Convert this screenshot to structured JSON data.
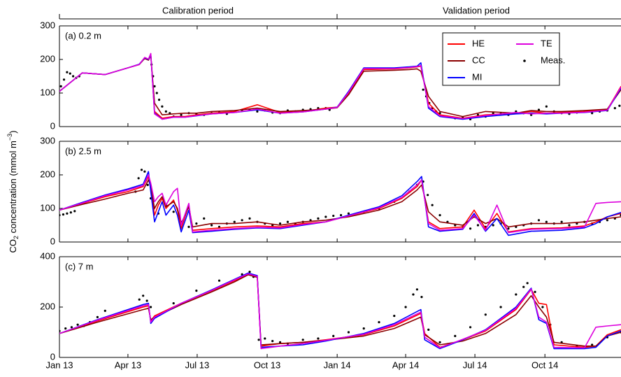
{
  "annotations": [
    "Calibration period",
    "Validation period"
  ],
  "ylabel": {
    "text": "CO",
    "sub": "2",
    "unit": " concentration (mmol m",
    "sup": "−3",
    "end": ")"
  },
  "chart_data": [
    {
      "type": "line",
      "title": "(a) 0.2 m",
      "legend": "upper right",
      "xlim": [
        0,
        738
      ],
      "ylim": [
        0,
        300
      ],
      "yticks": [
        0,
        100,
        200,
        300
      ],
      "x": [
        0,
        30,
        60,
        90,
        105,
        112,
        117,
        120,
        125,
        135,
        150,
        165,
        180,
        200,
        230,
        260,
        290,
        320,
        350,
        365,
        380,
        400,
        440,
        460,
        470,
        475,
        485,
        500,
        530,
        560,
        600,
        620,
        640,
        660,
        690,
        720,
        738
      ],
      "series": [
        {
          "name": "HE",
          "color": "#ff0000",
          "values": [
            105,
            160,
            155,
            175,
            185,
            205,
            200,
            215,
            45,
            25,
            30,
            30,
            35,
            40,
            45,
            65,
            42,
            45,
            55,
            58,
            100,
            170,
            172,
            175,
            178,
            180,
            70,
            35,
            25,
            35,
            40,
            45,
            40,
            42,
            45,
            50,
            120
          ]
        },
        {
          "name": "CC",
          "color": "#8b0000",
          "values": [
            105,
            160,
            155,
            175,
            185,
            203,
            198,
            212,
            70,
            35,
            38,
            40,
            40,
            45,
            48,
            55,
            45,
            48,
            52,
            56,
            95,
            165,
            168,
            170,
            172,
            165,
            90,
            45,
            30,
            45,
            40,
            48,
            45,
            45,
            48,
            52,
            110
          ]
        },
        {
          "name": "MI",
          "color": "#0000ff",
          "values": [
            105,
            160,
            155,
            175,
            186,
            205,
            200,
            216,
            40,
            22,
            28,
            28,
            32,
            38,
            42,
            50,
            40,
            44,
            52,
            58,
            105,
            175,
            175,
            178,
            180,
            190,
            55,
            30,
            22,
            30,
            38,
            40,
            38,
            40,
            42,
            48,
            115
          ]
        },
        {
          "name": "TE",
          "color": "#dd00dd",
          "values": [
            105,
            160,
            155,
            175,
            185,
            206,
            201,
            218,
            38,
            22,
            28,
            28,
            33,
            38,
            42,
            52,
            40,
            44,
            52,
            57,
            102,
            173,
            173,
            176,
            179,
            182,
            60,
            32,
            24,
            33,
            42,
            38,
            40,
            40,
            43,
            49,
            118
          ]
        },
        {
          "name": "Meas.",
          "type": "scatter",
          "color": "#000000",
          "x": [
            2,
            6,
            10,
            14,
            18,
            22,
            26,
            121,
            123,
            125,
            128,
            131,
            135,
            140,
            145,
            150,
            160,
            170,
            180,
            190,
            200,
            210,
            220,
            230,
            240,
            250,
            260,
            270,
            280,
            290,
            300,
            310,
            320,
            330,
            340,
            350,
            355,
            478,
            482,
            486,
            490,
            495,
            500,
            510,
            520,
            530,
            540,
            550,
            560,
            570,
            580,
            590,
            600,
            610,
            620,
            630,
            640,
            650,
            660,
            670,
            680,
            690,
            700,
            710,
            720,
            730,
            736
          ],
          "values": [
            120,
            140,
            162,
            158,
            150,
            145,
            150,
            185,
            150,
            120,
            100,
            80,
            60,
            45,
            40,
            30,
            35,
            40,
            38,
            35,
            40,
            42,
            38,
            45,
            48,
            50,
            45,
            48,
            42,
            40,
            48,
            45,
            50,
            52,
            55,
            55,
            50,
            110,
            90,
            70,
            55,
            45,
            40,
            30,
            25,
            28,
            22,
            35,
            30,
            40,
            38,
            35,
            45,
            40,
            35,
            50,
            60,
            45,
            40,
            38,
            42,
            45,
            40,
            45,
            48,
            55,
            62
          ]
        }
      ]
    },
    {
      "type": "line",
      "title": "(b) 2.5 m",
      "xlim": [
        0,
        738
      ],
      "ylim": [
        0,
        300
      ],
      "yticks": [
        0,
        100,
        200,
        300
      ],
      "x": [
        0,
        30,
        60,
        90,
        110,
        117,
        120,
        125,
        130,
        135,
        140,
        150,
        155,
        160,
        170,
        175,
        200,
        230,
        260,
        290,
        320,
        350,
        380,
        420,
        450,
        470,
        476,
        485,
        500,
        530,
        545,
        560,
        575,
        590,
        620,
        660,
        690,
        705,
        720,
        738
      ],
      "series": [
        {
          "color": "#ff0000",
          "values": [
            95,
            115,
            135,
            150,
            165,
            195,
            160,
            80,
            110,
            130,
            100,
            125,
            95,
            40,
            110,
            35,
            40,
            45,
            48,
            45,
            55,
            60,
            78,
            100,
            130,
            165,
            185,
            60,
            40,
            45,
            95,
            40,
            85,
            30,
            40,
            42,
            48,
            60,
            75,
            85
          ]
        },
        {
          "color": "#8b0000",
          "values": [
            95,
            112,
            128,
            145,
            155,
            185,
            165,
            100,
            120,
            135,
            105,
            120,
            100,
            55,
            105,
            45,
            55,
            55,
            60,
            50,
            60,
            65,
            75,
            95,
            120,
            155,
            170,
            90,
            60,
            50,
            75,
            55,
            70,
            45,
            55,
            55,
            60,
            65,
            70,
            75
          ]
        },
        {
          "color": "#0000ff",
          "values": [
            95,
            118,
            140,
            158,
            172,
            210,
            150,
            60,
            90,
            120,
            80,
            110,
            80,
            30,
            95,
            28,
            32,
            38,
            42,
            40,
            50,
            60,
            80,
            105,
            138,
            180,
            195,
            45,
            32,
            38,
            85,
            32,
            70,
            20,
            32,
            35,
            42,
            55,
            75,
            88
          ]
        },
        {
          "color": "#dd00dd",
          "values": [
            95,
            116,
            138,
            155,
            168,
            200,
            175,
            120,
            135,
            145,
            110,
            150,
            160,
            50,
            115,
            30,
            35,
            40,
            44,
            42,
            52,
            60,
            78,
            102,
            133,
            170,
            185,
            55,
            35,
            40,
            80,
            35,
            110,
            28,
            38,
            40,
            45,
            115,
            118,
            120
          ]
        },
        {
          "type": "scatter",
          "color": "#000000",
          "x": [
            0,
            5,
            10,
            15,
            20,
            100,
            104,
            108,
            112,
            116,
            120,
            124,
            130,
            140,
            150,
            160,
            170,
            180,
            190,
            200,
            210,
            220,
            230,
            240,
            250,
            260,
            270,
            280,
            290,
            300,
            310,
            320,
            330,
            340,
            350,
            360,
            370,
            380,
            400,
            420,
            440,
            460,
            470,
            478,
            484,
            490,
            500,
            510,
            520,
            530,
            540,
            550,
            560,
            570,
            580,
            590,
            600,
            610,
            620,
            630,
            640,
            650,
            660,
            670,
            680,
            690,
            700,
            710,
            720,
            730,
            738
          ],
          "values": [
            80,
            82,
            85,
            88,
            92,
            150,
            190,
            215,
            210,
            170,
            130,
            100,
            85,
            110,
            90,
            60,
            45,
            55,
            70,
            50,
            45,
            55,
            60,
            65,
            70,
            60,
            55,
            50,
            55,
            60,
            55,
            60,
            65,
            70,
            75,
            78,
            80,
            85,
            90,
            100,
            120,
            150,
            170,
            180,
            140,
            110,
            80,
            60,
            50,
            45,
            40,
            50,
            45,
            50,
            55,
            40,
            45,
            50,
            55,
            65,
            60,
            55,
            60,
            50,
            55,
            60,
            55,
            60,
            65,
            70,
            80
          ]
        }
      ]
    },
    {
      "type": "line",
      "title": "(c) 7 m",
      "xlim": [
        0,
        738
      ],
      "ylim": [
        0,
        400
      ],
      "yticks": [
        0,
        200,
        400
      ],
      "xticks": [
        {
          "value": 0,
          "label": "Jan 13"
        },
        {
          "value": 90,
          "label": "Apr 13"
        },
        {
          "value": 181,
          "label": "Jul 13"
        },
        {
          "value": 273,
          "label": "Oct 13"
        },
        {
          "value": 365,
          "label": "Jan 14"
        },
        {
          "value": 455,
          "label": "Apr 14"
        },
        {
          "value": 546,
          "label": "Jul 14"
        },
        {
          "value": 638,
          "label": "Oct 14"
        }
      ],
      "x": [
        0,
        50,
        110,
        117,
        120,
        125,
        160,
        200,
        230,
        248,
        260,
        265,
        290,
        320,
        350,
        400,
        440,
        475,
        480,
        500,
        530,
        560,
        600,
        620,
        630,
        640,
        650,
        690,
        705,
        720,
        738
      ],
      "series": [
        {
          "color": "#ff0000",
          "values": [
            95,
            145,
            200,
            205,
            145,
            165,
            215,
            265,
            305,
            330,
            320,
            45,
            55,
            60,
            70,
            90,
            125,
            175,
            95,
            40,
            70,
            105,
            190,
            270,
            215,
            210,
            50,
            40,
            45,
            90,
            110
          ]
        },
        {
          "color": "#8b0000",
          "values": [
            95,
            140,
            190,
            195,
            150,
            160,
            210,
            260,
            300,
            328,
            318,
            50,
            55,
            60,
            68,
            85,
            115,
            160,
            90,
            50,
            65,
            95,
            170,
            245,
            200,
            160,
            60,
            45,
            45,
            85,
            100
          ]
        },
        {
          "color": "#0000ff",
          "values": [
            95,
            150,
            210,
            215,
            135,
            155,
            215,
            268,
            310,
            335,
            325,
            40,
            45,
            50,
            65,
            95,
            135,
            190,
            70,
            35,
            70,
            110,
            200,
            275,
            150,
            135,
            35,
            35,
            40,
            85,
            105
          ]
        },
        {
          "color": "#dd00dd",
          "values": [
            95,
            148,
            205,
            210,
            140,
            160,
            215,
            266,
            308,
            332,
            322,
            35,
            45,
            55,
            68,
            92,
            130,
            180,
            80,
            38,
            72,
            108,
            195,
            272,
            160,
            140,
            40,
            38,
            120,
            125,
            130
          ]
        },
        {
          "type": "scatter",
          "color": "#000000",
          "x": [
            0,
            8,
            16,
            24,
            32,
            40,
            50,
            60,
            105,
            110,
            115,
            120,
            150,
            180,
            210,
            240,
            250,
            255,
            262,
            270,
            280,
            290,
            300,
            320,
            340,
            360,
            380,
            400,
            420,
            440,
            455,
            465,
            470,
            476,
            485,
            500,
            520,
            540,
            560,
            580,
            600,
            610,
            615,
            625,
            635,
            645,
            660,
            680,
            700,
            720,
            738
          ],
          "values": [
            105,
            115,
            120,
            130,
            125,
            140,
            160,
            185,
            230,
            245,
            225,
            200,
            215,
            265,
            305,
            330,
            340,
            320,
            70,
            75,
            65,
            60,
            55,
            70,
            75,
            85,
            100,
            115,
            140,
            165,
            200,
            250,
            270,
            240,
            110,
            60,
            85,
            120,
            170,
            200,
            250,
            280,
            295,
            260,
            200,
            130,
            60,
            45,
            50,
            80,
            100
          ]
        }
      ]
    }
  ]
}
